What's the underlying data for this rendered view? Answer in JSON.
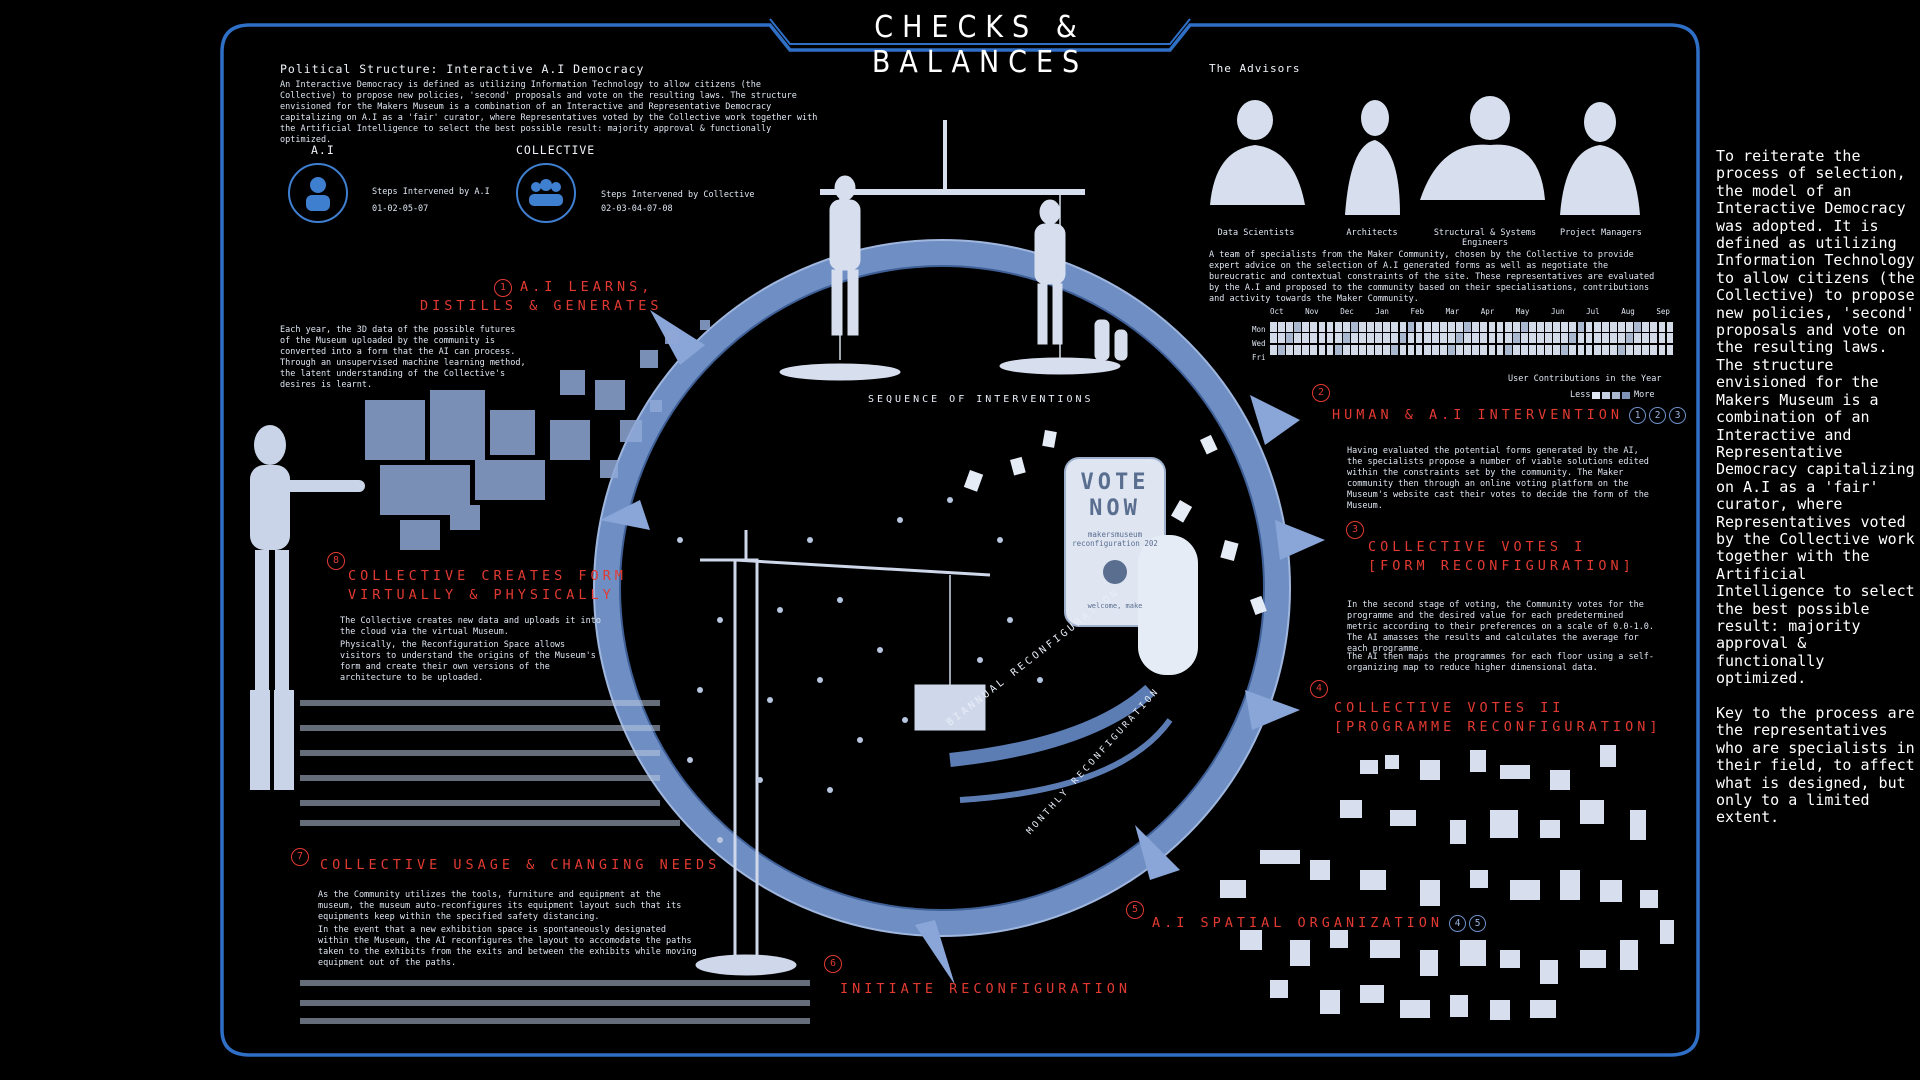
{
  "title": "CHECKS & BALANCES",
  "political": {
    "heading": "Political Structure: Interactive A.I Democracy",
    "body": "An Interactive Democracy is defined as utilizing Information Technology to allow citizens (the Collective) to propose new policies, 'second' proposals and vote on the resulting laws. The structure envisioned for the Makers Museum is a combination of an Interactive and Representative Democracy capitalizing on A.I as a 'fair' curator, where Representatives voted by the Collective work together with the Artificial Intelligence to select the best possible result: majority approval & functionally optimized."
  },
  "legend": {
    "ai_label": "A.I",
    "ai_steps_title": "Steps Intervened by A.I",
    "ai_steps": "01-02-05-07",
    "collective_label": "COLLECTIVE",
    "collective_steps_title": "Steps Intervened by Collective",
    "collective_steps": "02-03-04-07-08"
  },
  "steps": {
    "s1": {
      "num": "1",
      "title1": "A.I LEARNS,",
      "title2": "DISTILLS & GENERATES",
      "body": "Each year, the 3D data of the possible futures of the Museum uploaded by the community is converted into a form that the AI can process. Through an unsupervised machine learning method, the latent understanding of the Collective's desires is learnt."
    },
    "s2": {
      "num": "2",
      "title": "HUMAN & A.I INTERVENTION",
      "refs": [
        "1",
        "2",
        "3"
      ],
      "body": "Having evaluated the potential forms generated by the AI, the specialists propose a number of viable solutions edited within the constraints set by the community. The Maker community then through an online voting platform on the Museum's website cast their votes to decide the form of the Museum."
    },
    "s3": {
      "num": "3",
      "title1": "COLLECTIVE VOTES I",
      "title2": "[FORM RECONFIGURATION]",
      "body1": "In the second stage of voting, the Community votes for the programme and the desired value for each predetermined metric according to their preferences on a scale of 0.0-1.0. The AI amasses the results and calculates the average for each programme.",
      "body2": "The AI then maps the programmes for each floor using a self-organizing map to reduce higher dimensional data."
    },
    "s4": {
      "num": "4",
      "title1": "COLLECTIVE VOTES II",
      "title2": "[PROGRAMME RECONFIGURATION]"
    },
    "s5": {
      "num": "5",
      "title": "A.I SPATIAL ORGANIZATION",
      "refs": [
        "4",
        "5"
      ]
    },
    "s6": {
      "num": "6",
      "title": "INITIATE RECONFIGURATION"
    },
    "s7": {
      "num": "7",
      "title": "COLLECTIVE USAGE & CHANGING NEEDS",
      "body1": "As the Community utilizes the tools, furniture and equipment at the museum, the museum auto-reconfigures its equipment layout such that its equipments keep within the specified safety distancing.",
      "body2": "In the event that a new exhibition space is spontaneously designated within the Museum, the AI reconfigures the layout to accomodate the paths taken to the exhibits from the exits and between the exhibits while moving equipment out of the paths."
    },
    "s8": {
      "num": "8",
      "title1": "COLLECTIVE CREATES FORM",
      "title2": "VIRTUALLY & PHYSICALLY",
      "body1": "The Collective creates new data and uploads it into the cloud via the virtual Museum.",
      "body2": "Physically, the Reconfiguration Space allows visitors to understand the origins of the Museum's form and create their own versions of the architecture to be uploaded."
    }
  },
  "ring": {
    "sequence_label": "SEQUENCE OF INTERVENTIONS",
    "biannual": "BIANNUAL RECONFIGURATION",
    "monthly": "MONTHLY RECONFIGURATION"
  },
  "phone": {
    "line1": "VOTE",
    "line2": "NOW",
    "site": "makersmuseum reconfiguration 202",
    "footer": "welcome, make"
  },
  "advisors": {
    "heading": "The Advisors",
    "roles": [
      "Data Scientists",
      "Architects",
      "Structural & Systems Engineers",
      "Project Managers"
    ],
    "body": "A team of specialists from the Maker Community, chosen by the Collective to provide expert advice on the selection of A.I generated forms as well as negotiate the bureucratic and contextual constraints of the site. These representatives are evaluated by the A.I and proposed to the community based on their specialisations, contributions and activity towards the Maker Community."
  },
  "contributions": {
    "months": [
      "Oct",
      "Nov",
      "Dec",
      "Jan",
      "Feb",
      "Mar",
      "Apr",
      "May",
      "Jun",
      "Jul",
      "Aug",
      "Sep"
    ],
    "days": [
      "Mon",
      "Wed",
      "Fri"
    ],
    "caption": "User Contributions in the Year",
    "less": "Less",
    "more": "More"
  },
  "side_text": "To reiterate the process of selection, the model of an Interactive Democracy was adopted. It is defined as utilizing Information Technology to allow citizens (the Collective) to propose new policies, 'second' proposals and vote on the resulting laws. The structure envisioned for the Makers Museum is a combination of an Interactive and Representative Democracy capitalizing on A.I as a 'fair' curator, where Representatives voted by the Collective work together with the Artificial Intelligence to select the best possible result: majority approval & functionally optimized.\n\nKey to the process are the representatives who are specialists in their field, to affect what is designed, but only to a limited extent.",
  "colors": {
    "frame": "#2f6fc6",
    "accent_red": "#e23a32",
    "ring": "#6f8fc4"
  }
}
